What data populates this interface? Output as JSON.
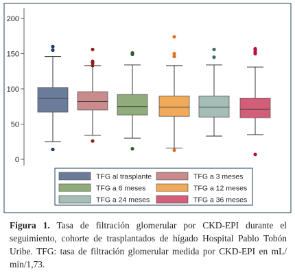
{
  "chart_data": {
    "type": "box",
    "title": "",
    "xlabel": "",
    "ylabel": "",
    "ylim": [
      0,
      200
    ],
    "yticks": [
      0,
      50,
      100,
      150,
      200
    ],
    "grid": false,
    "legend_position": "bottom",
    "series": [
      {
        "name": "TFG al trasplante",
        "color": "#6b7b9a",
        "whisker_low": 25,
        "q1": 67,
        "median": 87,
        "q3": 102,
        "whisker_high": 146,
        "outliers": [
          14,
          155,
          160
        ]
      },
      {
        "name": "TFG a 3 meses",
        "color": "#c98b8b",
        "whisker_low": 34,
        "q1": 70,
        "median": 82,
        "q3": 96,
        "whisker_high": 133,
        "outliers": [
          26,
          133,
          137,
          139,
          156
        ]
      },
      {
        "name": "TFG a 6 meses",
        "color": "#8fac7a",
        "whisker_low": 30,
        "q1": 63,
        "median": 75,
        "q3": 92,
        "whisker_high": 134,
        "outliers": [
          15,
          149,
          151
        ]
      },
      {
        "name": "TFG a 12 meses",
        "color": "#f1aa5a",
        "whisker_low": 16,
        "q1": 61,
        "median": 74,
        "q3": 90,
        "whisker_high": 133,
        "outliers": [
          13,
          146,
          150,
          174
        ]
      },
      {
        "name": "TFG a 24 meses",
        "color": "#a4bdb6",
        "whisker_low": 33,
        "q1": 60,
        "median": 74,
        "q3": 90,
        "whisker_high": 134,
        "outliers": [
          145,
          156
        ]
      },
      {
        "name": "TFG a 36 meses",
        "color": "#d35e79",
        "whisker_low": 35,
        "q1": 59,
        "median": 71,
        "q3": 87,
        "whisker_high": 131,
        "outliers": [
          7,
          150,
          152,
          155,
          157
        ]
      }
    ]
  },
  "caption": {
    "label": "Figura 1.",
    "text": " Tasa de filtración glomerular por CKD-EPI durante el seguimiento, cohorte de trasplantados de hígado Hospital Pablo Tobón Uribe. TFG: tasa de filtración glomerular medida por CKD-EPI en mL/ min/1,73."
  }
}
